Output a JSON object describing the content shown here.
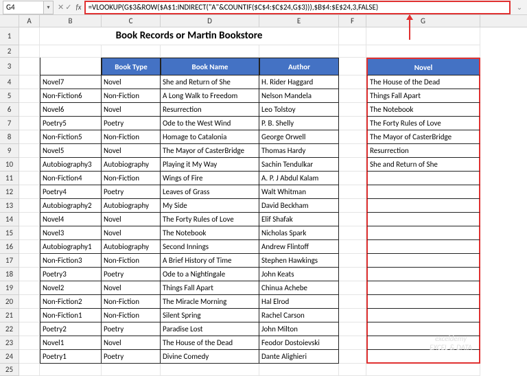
{
  "nameBox": "G4",
  "formula": "=VLOOKUP(G$3&ROW($A$1:INDIRECT(\"A\"&COUNTIF($C$4:$C$24,G$3))),$B$4:$E$24,3,FALSE)",
  "title": "Book Records or Martin Bookstore",
  "cols": {
    "A": 30,
    "B": 90,
    "C": 86,
    "D": 144,
    "E": 116,
    "F": 40,
    "G": 166
  },
  "colLetters": [
    "A",
    "B",
    "C",
    "D",
    "E",
    "F",
    "G"
  ],
  "headers": {
    "bookType": "Book Type",
    "bookName": "Book Name",
    "author": "Author",
    "novel": "Novel"
  },
  "rows": [
    {
      "n": 4,
      "b": "Novel7",
      "c": "Novel",
      "d": "She and Return of She",
      "e": "H. Rider Haggard",
      "g": "The House of the Dead"
    },
    {
      "n": 5,
      "b": "Non-Fiction6",
      "c": "Non-Fiction",
      "d": "A Long Walk to Freedom",
      "e": "Nelson Mandela",
      "g": "Things Fall Apart"
    },
    {
      "n": 6,
      "b": "Novel6",
      "c": "Novel",
      "d": "Resurrection",
      "e": "Leo Tolstoy",
      "g": "The Notebook"
    },
    {
      "n": 7,
      "b": "Poetry5",
      "c": "Poetry",
      "d": "Ode to the West Wind",
      "e": "P. B. Shelly",
      "g": "The Forty Rules of Love"
    },
    {
      "n": 8,
      "b": "Non-Fiction5",
      "c": "Non-Fiction",
      "d": "Homage to Catalonia",
      "e": "George Orwell",
      "g": "The Mayor of CasterBridge"
    },
    {
      "n": 9,
      "b": "Novel5",
      "c": "Novel",
      "d": "The Mayor of CasterBridge",
      "e": "Thomas Hardy",
      "g": "Resurrection"
    },
    {
      "n": 10,
      "b": "Autobiography3",
      "c": "Autobiography",
      "d": "Playing it My Way",
      "e": "Sachin Tendulkar",
      "g": "She and Return of She"
    },
    {
      "n": 11,
      "b": "Non-Fiction4",
      "c": "Non-Fiction",
      "d": "Wings of Fire",
      "e": "A. P. J Abdul Kalam",
      "g": ""
    },
    {
      "n": 12,
      "b": "Poetry4",
      "c": "Poetry",
      "d": "Leaves of Grass",
      "e": "Walt Whitman",
      "g": ""
    },
    {
      "n": 13,
      "b": "Autobiography2",
      "c": "Autobiography",
      "d": "My Side",
      "e": "David Beckham",
      "g": ""
    },
    {
      "n": 14,
      "b": "Novel4",
      "c": "Novel",
      "d": "The Forty Rules of Love",
      "e": "Elif Shafak",
      "g": ""
    },
    {
      "n": 15,
      "b": "Novel3",
      "c": "Novel",
      "d": "The Notebook",
      "e": "Nicholas Spark",
      "g": ""
    },
    {
      "n": 16,
      "b": "Autobiography1",
      "c": "Autobiography",
      "d": "Second Innings",
      "e": "Andrew Flintoff",
      "g": ""
    },
    {
      "n": 17,
      "b": "Non-Fiction3",
      "c": "Non-Fiction",
      "d": "A Brief History of Time",
      "e": "Stephen Hawkings",
      "g": ""
    },
    {
      "n": 18,
      "b": "Poetry3",
      "c": "Poetry",
      "d": "Ode to a Nightingale",
      "e": "John Keats",
      "g": ""
    },
    {
      "n": 19,
      "b": "Novel2",
      "c": "Novel",
      "d": "Things Fall Apart",
      "e": "Chinua Achebe",
      "g": ""
    },
    {
      "n": 20,
      "b": "Non-Fiction2",
      "c": "Non-Fiction",
      "d": "The Miracle Morning",
      "e": "Hal Elrod",
      "g": ""
    },
    {
      "n": 21,
      "b": "Non-Fiction1",
      "c": "Non-Fiction",
      "d": "Silent Spring",
      "e": "Rachel Carson",
      "g": ""
    },
    {
      "n": 22,
      "b": "Poetry2",
      "c": "Poetry",
      "d": "Paradise Lost",
      "e": "John Milton",
      "g": ""
    },
    {
      "n": 23,
      "b": "Novel1",
      "c": "Novel",
      "d": "The House of the Dead",
      "e": "Feodor Dostoievski",
      "g": ""
    },
    {
      "n": 24,
      "b": "Poetry1",
      "c": "Poetry",
      "d": "Divine Comedy",
      "e": "Dante Alighieri",
      "g": ""
    }
  ],
  "watermark": {
    "l1": "exceldemy",
    "l2": "EXCEL & DATA"
  },
  "colors": {
    "headerBg": "#4472c4",
    "highlight": "#e03030"
  }
}
